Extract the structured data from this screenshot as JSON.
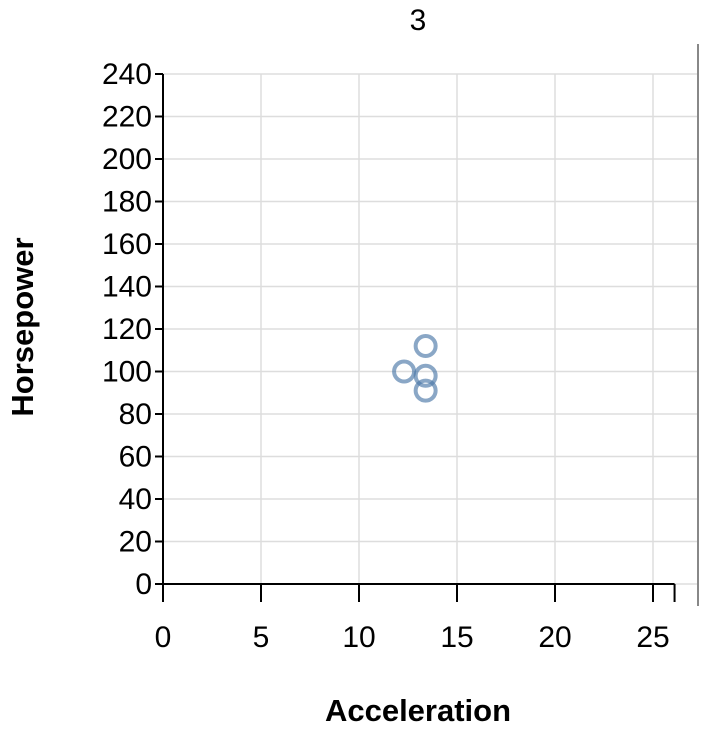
{
  "chart_data": {
    "type": "scatter",
    "title": "3",
    "xlabel": "Acceleration",
    "ylabel": "Horsepower",
    "xlim": [
      0,
      26
    ],
    "ylim": [
      0,
      240
    ],
    "x_ticks": [
      0,
      5,
      10,
      15,
      20,
      25
    ],
    "y_ticks": [
      0,
      20,
      40,
      60,
      80,
      100,
      120,
      140,
      160,
      180,
      200,
      220,
      240
    ],
    "grid": true,
    "marker": "open-circle",
    "point_color": "#4c78a8",
    "series": [
      {
        "points": [
          {
            "x": 12.3,
            "y": 100
          },
          {
            "x": 13.4,
            "y": 112
          },
          {
            "x": 13.4,
            "y": 98
          },
          {
            "x": 13.4,
            "y": 91
          }
        ]
      }
    ]
  }
}
